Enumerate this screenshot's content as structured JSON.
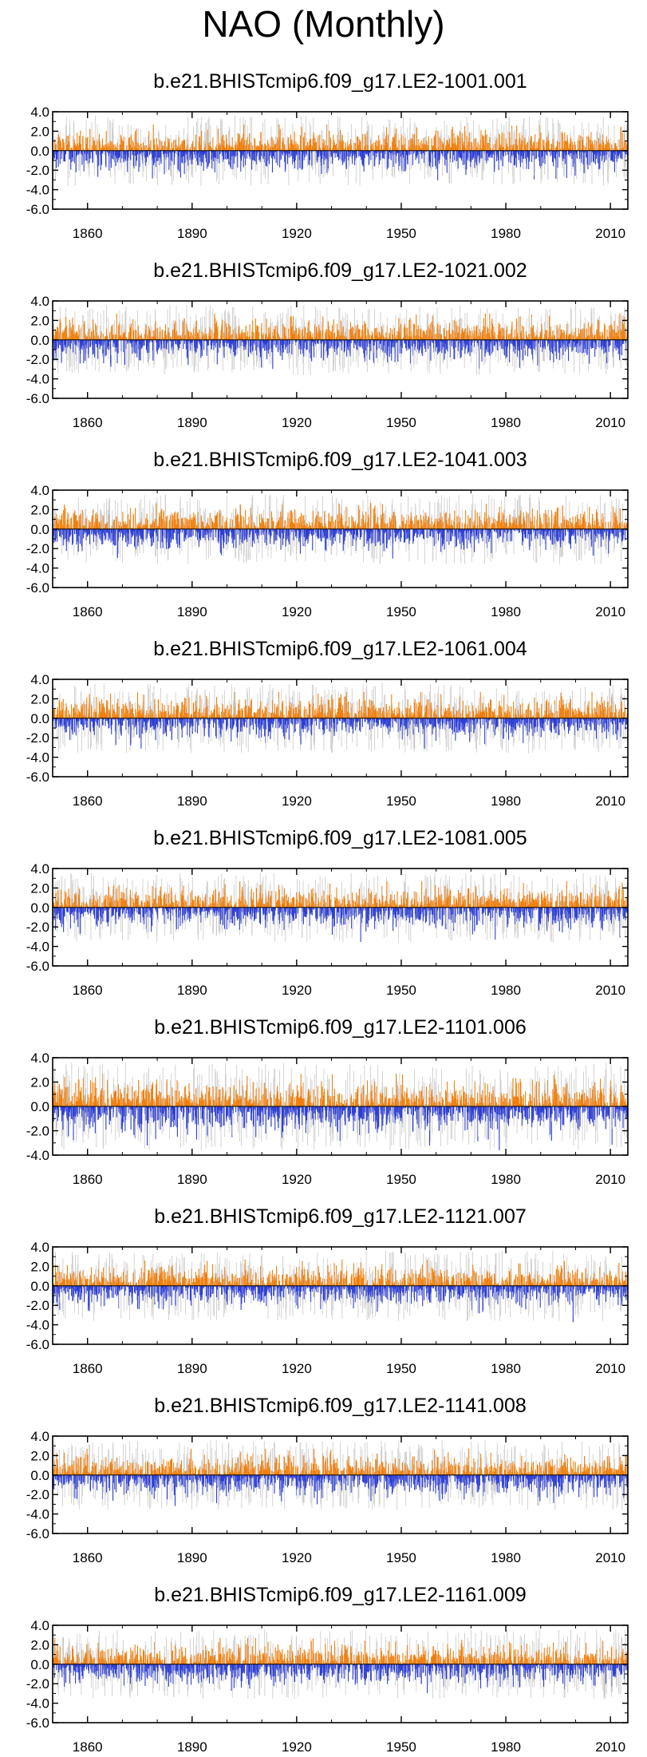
{
  "page": {
    "title": "NAO (Monthly)"
  },
  "colors": {
    "positive": "#f07f0c",
    "negative": "#2e3fd4",
    "spread": "#c8c8c8",
    "axis": "#000000"
  },
  "chart_data": [
    {
      "type": "bar",
      "title": "b.e21.BHISTcmip6.f09_g17.LE2-1001.001",
      "ylim": [
        -6,
        4
      ],
      "yticks": [
        "4.0",
        "2.0",
        "0.0",
        "-2.0",
        "-4.0",
        "-6.0"
      ],
      "xlim": [
        1850,
        2015
      ],
      "xticks": [
        "1860",
        "1890",
        "1920",
        "1950",
        "1980",
        "2010"
      ],
      "series_summary": "monthly NAO index, orange = positive, blue = negative, grey = ensemble spread",
      "seed": 11
    },
    {
      "type": "bar",
      "title": "b.e21.BHISTcmip6.f09_g17.LE2-1021.002",
      "ylim": [
        -6,
        4
      ],
      "yticks": [
        "4.0",
        "2.0",
        "0.0",
        "-2.0",
        "-4.0",
        "-6.0"
      ],
      "xlim": [
        1850,
        2015
      ],
      "xticks": [
        "1860",
        "1890",
        "1920",
        "1950",
        "1980",
        "2010"
      ],
      "series_summary": "monthly NAO index, orange = positive, blue = negative, grey = ensemble spread",
      "seed": 23
    },
    {
      "type": "bar",
      "title": "b.e21.BHISTcmip6.f09_g17.LE2-1041.003",
      "ylim": [
        -6,
        4
      ],
      "yticks": [
        "4.0",
        "2.0",
        "0.0",
        "-2.0",
        "-4.0",
        "-6.0"
      ],
      "xlim": [
        1850,
        2015
      ],
      "xticks": [
        "1860",
        "1890",
        "1920",
        "1950",
        "1980",
        "2010"
      ],
      "series_summary": "monthly NAO index, orange = positive, blue = negative, grey = ensemble spread",
      "seed": 37
    },
    {
      "type": "bar",
      "title": "b.e21.BHISTcmip6.f09_g17.LE2-1061.004",
      "ylim": [
        -6,
        4
      ],
      "yticks": [
        "4.0",
        "2.0",
        "0.0",
        "-2.0",
        "-4.0",
        "-6.0"
      ],
      "xlim": [
        1850,
        2015
      ],
      "xticks": [
        "1860",
        "1890",
        "1920",
        "1950",
        "1980",
        "2010"
      ],
      "series_summary": "monthly NAO index, orange = positive, blue = negative, grey = ensemble spread",
      "seed": 41
    },
    {
      "type": "bar",
      "title": "b.e21.BHISTcmip6.f09_g17.LE2-1081.005",
      "ylim": [
        -6,
        4
      ],
      "yticks": [
        "4.0",
        "2.0",
        "0.0",
        "-2.0",
        "-4.0",
        "-6.0"
      ],
      "xlim": [
        1850,
        2015
      ],
      "xticks": [
        "1860",
        "1890",
        "1920",
        "1950",
        "1980",
        "2010"
      ],
      "series_summary": "monthly NAO index, orange = positive, blue = negative, grey = ensemble spread",
      "seed": 53
    },
    {
      "type": "bar",
      "title": "b.e21.BHISTcmip6.f09_g17.LE2-1101.006",
      "ylim": [
        -4,
        4
      ],
      "yticks": [
        "4.0",
        "2.0",
        "0.0",
        "-2.0",
        "-4.0"
      ],
      "xlim": [
        1850,
        2015
      ],
      "xticks": [
        "1860",
        "1890",
        "1920",
        "1950",
        "1980",
        "2010"
      ],
      "series_summary": "monthly NAO index, orange = positive, blue = negative, grey = ensemble spread",
      "seed": 67
    },
    {
      "type": "bar",
      "title": "b.e21.BHISTcmip6.f09_g17.LE2-1121.007",
      "ylim": [
        -6,
        4
      ],
      "yticks": [
        "4.0",
        "2.0",
        "0.0",
        "-2.0",
        "-4.0",
        "-6.0"
      ],
      "xlim": [
        1850,
        2015
      ],
      "xticks": [
        "1860",
        "1890",
        "1920",
        "1950",
        "1980",
        "2010"
      ],
      "series_summary": "monthly NAO index, orange = positive, blue = negative, grey = ensemble spread",
      "seed": 71
    },
    {
      "type": "bar",
      "title": "b.e21.BHISTcmip6.f09_g17.LE2-1141.008",
      "ylim": [
        -6,
        4
      ],
      "yticks": [
        "4.0",
        "2.0",
        "0.0",
        "-2.0",
        "-4.0",
        "-6.0"
      ],
      "xlim": [
        1850,
        2015
      ],
      "xticks": [
        "1860",
        "1890",
        "1920",
        "1950",
        "1980",
        "2010"
      ],
      "series_summary": "monthly NAO index, orange = positive, blue = negative, grey = ensemble spread",
      "seed": 83
    },
    {
      "type": "bar",
      "title": "b.e21.BHISTcmip6.f09_g17.LE2-1161.009",
      "ylim": [
        -6,
        4
      ],
      "yticks": [
        "4.0",
        "2.0",
        "0.0",
        "-2.0",
        "-4.0",
        "-6.0"
      ],
      "xlim": [
        1850,
        2015
      ],
      "xticks": [
        "1860",
        "1890",
        "1920",
        "1950",
        "1980",
        "2010"
      ],
      "series_summary": "monthly NAO index, orange = positive, blue = negative, grey = ensemble spread",
      "seed": 97
    }
  ]
}
